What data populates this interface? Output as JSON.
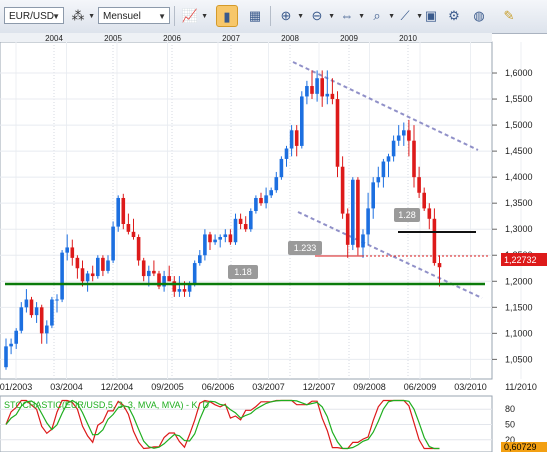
{
  "toolbar": {
    "symbol": "EUR/USD",
    "timeframe": "Mensuel",
    "icons": [
      "chart-type-icon",
      "candle-icon",
      "table-icon",
      "zoom-in-icon",
      "zoom-out-icon",
      "zoom-fit-icon",
      "magnifier-icon",
      "drawing-icon",
      "window-icon",
      "settings-icon",
      "globe-icon",
      "pencil-icon"
    ]
  },
  "colors": {
    "bull": "#1c6fe0",
    "bear": "#dd1a1a",
    "support": "#0a7a0a",
    "channel": "#9090c8",
    "resistance": "#111111"
  },
  "chart": {
    "top_years": [
      "2004",
      "2005",
      "2006",
      "2007",
      "2008",
      "2009",
      "2010"
    ],
    "x_dates": [
      "01/2003",
      "03/2004",
      "12/2004",
      "09/2005",
      "06/2006",
      "03/2007",
      "12/2007",
      "09/2008",
      "06/2009",
      "03/2010",
      "11/2010"
    ],
    "price_ticks": [
      "1,6000",
      "1,5500",
      "1,5000",
      "1,4500",
      "1,4000",
      "1,3500",
      "1,3000",
      "1,2500",
      "1,2000",
      "1,1500",
      "1,1000",
      "1,0500"
    ],
    "last_price": "1,22732",
    "labels": {
      "l118": "1.18",
      "l1233": "1.233",
      "l128": "1.28"
    }
  },
  "chart_data": {
    "type": "candlestick",
    "ylim": [
      1.02,
      1.625
    ],
    "grid": true,
    "candles": [
      [
        1.035,
        1.09,
        1.03,
        1.075
      ],
      [
        1.075,
        1.09,
        1.06,
        1.08
      ],
      [
        1.08,
        1.11,
        1.07,
        1.105
      ],
      [
        1.105,
        1.16,
        1.1,
        1.15
      ],
      [
        1.15,
        1.185,
        1.14,
        1.165
      ],
      [
        1.165,
        1.17,
        1.13,
        1.135
      ],
      [
        1.135,
        1.16,
        1.12,
        1.15
      ],
      [
        1.15,
        1.155,
        1.08,
        1.1
      ],
      [
        1.1,
        1.125,
        1.08,
        1.115
      ],
      [
        1.115,
        1.17,
        1.11,
        1.165
      ],
      [
        1.165,
        1.175,
        1.14,
        1.165
      ],
      [
        1.165,
        1.26,
        1.16,
        1.255
      ],
      [
        1.255,
        1.29,
        1.24,
        1.265
      ],
      [
        1.265,
        1.28,
        1.23,
        1.245
      ],
      [
        1.245,
        1.25,
        1.205,
        1.225
      ],
      [
        1.225,
        1.24,
        1.19,
        1.2
      ],
      [
        1.2,
        1.22,
        1.18,
        1.215
      ],
      [
        1.215,
        1.23,
        1.2,
        1.21
      ],
      [
        1.21,
        1.25,
        1.205,
        1.245
      ],
      [
        1.245,
        1.25,
        1.21,
        1.22
      ],
      [
        1.22,
        1.25,
        1.215,
        1.24
      ],
      [
        1.24,
        1.315,
        1.235,
        1.305
      ],
      [
        1.305,
        1.365,
        1.295,
        1.36
      ],
      [
        1.36,
        1.368,
        1.3,
        1.31
      ],
      [
        1.31,
        1.33,
        1.29,
        1.295
      ],
      [
        1.295,
        1.32,
        1.28,
        1.285
      ],
      [
        1.285,
        1.29,
        1.23,
        1.24
      ],
      [
        1.24,
        1.245,
        1.2,
        1.21
      ],
      [
        1.21,
        1.23,
        1.19,
        1.22
      ],
      [
        1.22,
        1.24,
        1.21,
        1.215
      ],
      [
        1.215,
        1.22,
        1.185,
        1.19
      ],
      [
        1.19,
        1.22,
        1.18,
        1.21
      ],
      [
        1.21,
        1.23,
        1.2,
        1.2
      ],
      [
        1.2,
        1.21,
        1.17,
        1.18
      ],
      [
        1.18,
        1.21,
        1.17,
        1.185
      ],
      [
        1.185,
        1.2,
        1.17,
        1.18
      ],
      [
        1.18,
        1.2,
        1.17,
        1.195
      ],
      [
        1.195,
        1.24,
        1.19,
        1.235
      ],
      [
        1.235,
        1.26,
        1.23,
        1.25
      ],
      [
        1.25,
        1.3,
        1.24,
        1.29
      ],
      [
        1.29,
        1.295,
        1.26,
        1.275
      ],
      [
        1.275,
        1.29,
        1.27,
        1.28
      ],
      [
        1.28,
        1.29,
        1.265,
        1.285
      ],
      [
        1.285,
        1.3,
        1.275,
        1.29
      ],
      [
        1.29,
        1.3,
        1.27,
        1.275
      ],
      [
        1.275,
        1.33,
        1.27,
        1.32
      ],
      [
        1.32,
        1.33,
        1.3,
        1.31
      ],
      [
        1.31,
        1.325,
        1.295,
        1.3
      ],
      [
        1.3,
        1.34,
        1.295,
        1.335
      ],
      [
        1.335,
        1.365,
        1.33,
        1.36
      ],
      [
        1.36,
        1.37,
        1.345,
        1.35
      ],
      [
        1.35,
        1.38,
        1.34,
        1.365
      ],
      [
        1.365,
        1.38,
        1.36,
        1.375
      ],
      [
        1.375,
        1.41,
        1.37,
        1.4
      ],
      [
        1.4,
        1.44,
        1.395,
        1.435
      ],
      [
        1.435,
        1.46,
        1.42,
        1.455
      ],
      [
        1.455,
        1.5,
        1.44,
        1.49
      ],
      [
        1.49,
        1.5,
        1.44,
        1.46
      ],
      [
        1.46,
        1.565,
        1.455,
        1.555
      ],
      [
        1.555,
        1.585,
        1.54,
        1.575
      ],
      [
        1.575,
        1.605,
        1.55,
        1.56
      ],
      [
        1.56,
        1.605,
        1.545,
        1.59
      ],
      [
        1.59,
        1.605,
        1.535,
        1.555
      ],
      [
        1.555,
        1.605,
        1.54,
        1.56
      ],
      [
        1.56,
        1.59,
        1.54,
        1.55
      ],
      [
        1.55,
        1.565,
        1.4,
        1.42
      ],
      [
        1.42,
        1.44,
        1.32,
        1.33
      ],
      [
        1.33,
        1.34,
        1.245,
        1.27
      ],
      [
        1.27,
        1.4,
        1.26,
        1.395
      ],
      [
        1.395,
        1.4,
        1.25,
        1.265
      ],
      [
        1.265,
        1.3,
        1.245,
        1.29
      ],
      [
        1.29,
        1.37,
        1.27,
        1.34
      ],
      [
        1.34,
        1.4,
        1.32,
        1.39
      ],
      [
        1.39,
        1.42,
        1.38,
        1.4
      ],
      [
        1.4,
        1.435,
        1.38,
        1.43
      ],
      [
        1.43,
        1.445,
        1.4,
        1.44
      ],
      [
        1.44,
        1.48,
        1.43,
        1.47
      ],
      [
        1.47,
        1.5,
        1.46,
        1.48
      ],
      [
        1.48,
        1.505,
        1.46,
        1.49
      ],
      [
        1.49,
        1.51,
        1.44,
        1.47
      ],
      [
        1.47,
        1.5,
        1.38,
        1.4
      ],
      [
        1.4,
        1.42,
        1.36,
        1.37
      ],
      [
        1.37,
        1.38,
        1.335,
        1.34
      ],
      [
        1.34,
        1.35,
        1.3,
        1.32
      ],
      [
        1.32,
        1.34,
        1.23,
        1.235
      ],
      [
        1.235,
        1.25,
        1.19,
        1.227
      ]
    ],
    "support_level": 1.18,
    "resistance_level": 1.28,
    "marked_level": 1.233,
    "stochastic": {
      "label": "STOCHASTIC(EUR/USD,5, 3, 3, MVA, MVA) - K, D",
      "ticks": [
        "80",
        "50",
        "20"
      ],
      "last_value": "0,60729",
      "ylim": [
        0,
        100
      ]
    }
  }
}
